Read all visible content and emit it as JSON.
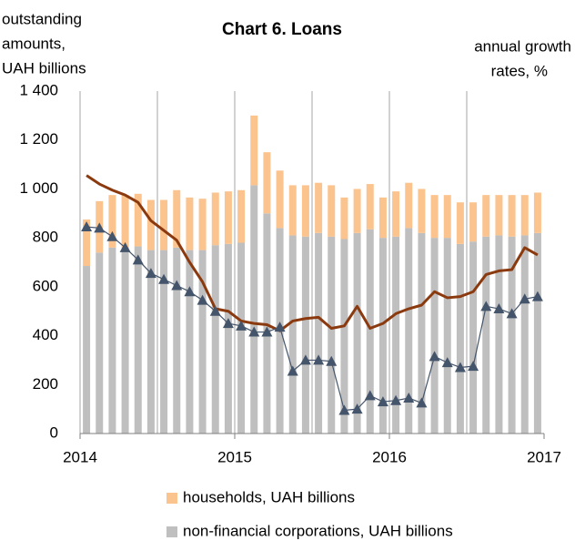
{
  "chart_data": {
    "type": "bar",
    "stacked": true,
    "title": "Chart 6. Loans",
    "y_label": [
      "outstanding",
      "amounts,",
      "UAH billions"
    ],
    "y2_label": [
      "annual growth",
      "rates, %"
    ],
    "x": [
      0.5,
      1.5,
      2.5,
      3.5,
      4.5,
      5.5,
      6.5,
      7.5,
      8.5,
      9.5,
      10.5,
      11.5,
      12.5,
      13.5,
      14.5,
      15.5,
      16.5,
      17.5,
      18.5,
      19.5,
      20.5,
      21.5,
      22.5,
      23.5,
      24.5,
      25.5,
      26.5,
      27.5,
      28.5,
      29.5,
      30.5,
      31.5,
      32.5,
      33.5,
      34.5,
      35.5
    ],
    "xlim": [
      0,
      36
    ],
    "xticks": [
      {
        "value": 0,
        "label": "2014"
      },
      {
        "value": 12,
        "label": "2015"
      },
      {
        "value": 24,
        "label": "2016"
      },
      {
        "value": 36,
        "label": "2017"
      }
    ],
    "xgrid": [
      0,
      6,
      12,
      18,
      24,
      30
    ],
    "ylim": [
      0,
      1400
    ],
    "yticks": [
      0,
      200,
      400,
      600,
      800,
      {
        "value": 1000,
        "label": "1 000"
      },
      {
        "value": 1200,
        "label": "1 200"
      },
      {
        "value": 1400,
        "label": "1 400"
      }
    ],
    "series": [
      {
        "name": "non-financial corporations, UAH billions",
        "color": "#bfbfbf",
        "values": [
          685,
          740,
          760,
          760,
          765,
          750,
          750,
          760,
          750,
          750,
          770,
          775,
          780,
          1015,
          900,
          840,
          810,
          805,
          820,
          805,
          795,
          820,
          835,
          800,
          805,
          840,
          820,
          800,
          800,
          775,
          785,
          805,
          810,
          805,
          810,
          820
        ]
      },
      {
        "name": "households, UAH billions",
        "color": "#fbc48f",
        "values": [
          190,
          210,
          215,
          215,
          215,
          205,
          205,
          235,
          215,
          210,
          215,
          215,
          215,
          285,
          250,
          235,
          205,
          210,
          205,
          210,
          170,
          180,
          185,
          165,
          185,
          185,
          180,
          175,
          175,
          170,
          160,
          170,
          165,
          170,
          165,
          165
        ]
      }
    ],
    "lines": [
      {
        "color": "#8b3a0f",
        "marker": "none",
        "values": [
          1055,
          1020,
          995,
          975,
          945,
          870,
          830,
          790,
          700,
          620,
          510,
          500,
          460,
          450,
          445,
          420,
          460,
          470,
          475,
          430,
          440,
          520,
          430,
          450,
          490,
          510,
          525,
          580,
          555,
          560,
          580,
          650,
          665,
          670,
          760,
          730
        ]
      },
      {
        "color": "#44546a",
        "marker": "triangle",
        "values": [
          845,
          840,
          805,
          760,
          710,
          655,
          630,
          605,
          580,
          545,
          500,
          450,
          440,
          415,
          415,
          435,
          255,
          300,
          300,
          295,
          95,
          100,
          155,
          130,
          135,
          145,
          125,
          315,
          290,
          270,
          275,
          520,
          510,
          490,
          550,
          560
        ]
      }
    ]
  }
}
